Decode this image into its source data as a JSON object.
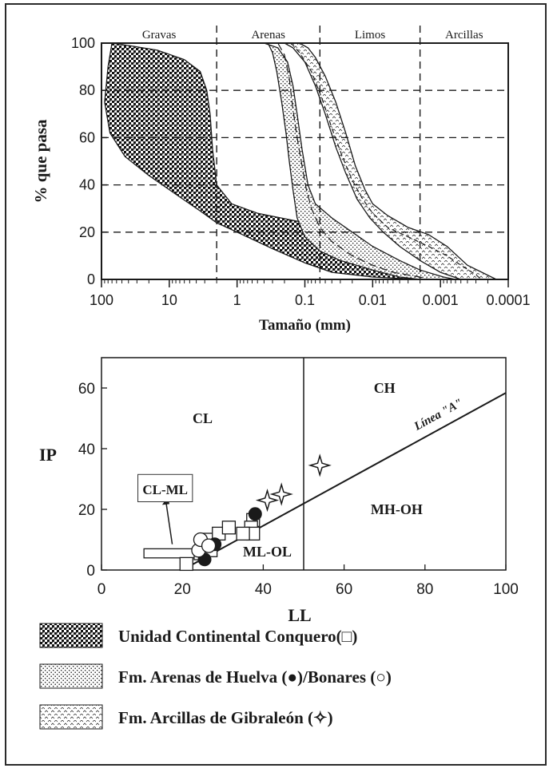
{
  "chart_data": [
    {
      "type": "area",
      "xlabel": "Tamaño (mm)",
      "ylabel": "% que pasa",
      "xscale": "log-reversed",
      "xlim": [
        100,
        0.0001
      ],
      "ylim": [
        0,
        100
      ],
      "x_ticks": [
        "100",
        "10",
        "1",
        "0.1",
        "0.01",
        "0.001",
        "0.0001"
      ],
      "y_ticks": [
        "0",
        "20",
        "40",
        "60",
        "80",
        "100"
      ],
      "y_tick_values": [
        0,
        20,
        40,
        60,
        80,
        100
      ],
      "x_tick_values": [
        100,
        10,
        1,
        0.1,
        0.01,
        0.001,
        0.0001
      ],
      "grid": "dashed horizontal at 20,40,60,80; dashed vertical at class boundaries",
      "size_classes": [
        {
          "name": "Gravas",
          "from": 100,
          "to": 2
        },
        {
          "name": "Arenas",
          "from": 2,
          "to": 0.06
        },
        {
          "name": "Limos",
          "from": 0.06,
          "to": 0.002
        },
        {
          "name": "Arcillas",
          "from": 0.002,
          "to": 0.0001
        }
      ],
      "bands": [
        {
          "name": "Unidad Continental Conquero",
          "upper": [
            [
              70,
              100
            ],
            [
              40,
              99
            ],
            [
              15,
              97
            ],
            [
              6,
              93
            ],
            [
              3.5,
              88
            ],
            [
              2.8,
              80
            ],
            [
              2.5,
              70
            ],
            [
              2.3,
              55
            ],
            [
              2,
              40
            ],
            [
              1.2,
              32
            ],
            [
              0.5,
              28
            ],
            [
              0.1,
              24
            ],
            [
              0.03,
              18
            ],
            [
              0.01,
              12
            ],
            [
              0.004,
              6
            ],
            [
              0.0015,
              2
            ],
            [
              0.0009,
              0
            ]
          ],
          "lower": [
            [
              70,
              100
            ],
            [
              80,
              90
            ],
            [
              90,
              75
            ],
            [
              75,
              62
            ],
            [
              45,
              52
            ],
            [
              20,
              44
            ],
            [
              8,
              36
            ],
            [
              3.5,
              29
            ],
            [
              2,
              24
            ],
            [
              1,
              20
            ],
            [
              0.3,
              13
            ],
            [
              0.1,
              7
            ],
            [
              0.04,
              3
            ],
            [
              0.01,
              1
            ],
            [
              0.002,
              0
            ]
          ]
        },
        {
          "name": "Fm. Arenas de Huelva / Bonares",
          "upper": [
            [
              0.4,
              100
            ],
            [
              0.25,
              98
            ],
            [
              0.18,
              92
            ],
            [
              0.15,
              82
            ],
            [
              0.13,
              70
            ],
            [
              0.11,
              55
            ],
            [
              0.09,
              40
            ],
            [
              0.07,
              32
            ],
            [
              0.04,
              26
            ],
            [
              0.02,
              20
            ],
            [
              0.01,
              14
            ],
            [
              0.004,
              8
            ],
            [
              0.002,
              4
            ],
            [
              0.0009,
              1
            ],
            [
              0.0006,
              0
            ]
          ],
          "lower": [
            [
              0.35,
              100
            ],
            [
              0.3,
              96
            ],
            [
              0.26,
              88
            ],
            [
              0.22,
              75
            ],
            [
              0.19,
              62
            ],
            [
              0.17,
              50
            ],
            [
              0.15,
              38
            ],
            [
              0.13,
              26
            ],
            [
              0.1,
              18
            ],
            [
              0.06,
              12
            ],
            [
              0.03,
              8
            ],
            [
              0.01,
              4
            ],
            [
              0.004,
              1
            ],
            [
              0.002,
              0
            ]
          ]
        },
        {
          "name": "Fm. Arcillas de Gibraleón",
          "upper": [
            [
              0.12,
              100
            ],
            [
              0.09,
              98
            ],
            [
              0.07,
              94
            ],
            [
              0.05,
              86
            ],
            [
              0.035,
              75
            ],
            [
              0.025,
              62
            ],
            [
              0.018,
              48
            ],
            [
              0.013,
              38
            ],
            [
              0.01,
              32
            ],
            [
              0.006,
              27
            ],
            [
              0.003,
              22
            ],
            [
              0.0015,
              19
            ],
            [
              0.0008,
              14
            ],
            [
              0.0004,
              6
            ],
            [
              0.00015,
              0
            ]
          ],
          "lower": [
            [
              0.2,
              100
            ],
            [
              0.15,
              98
            ],
            [
              0.1,
              92
            ],
            [
              0.07,
              82
            ],
            [
              0.05,
              70
            ],
            [
              0.035,
              56
            ],
            [
              0.025,
              45
            ],
            [
              0.017,
              34
            ],
            [
              0.011,
              26
            ],
            [
              0.007,
              20
            ],
            [
              0.004,
              14
            ],
            [
              0.002,
              8
            ],
            [
              0.001,
              3
            ],
            [
              0.0005,
              0
            ]
          ],
          "center": [
            [
              0.16,
              100
            ],
            [
              0.12,
              96
            ],
            [
              0.08,
              88
            ],
            [
              0.055,
              76
            ],
            [
              0.04,
              64
            ],
            [
              0.028,
              52
            ],
            [
              0.02,
              42
            ],
            [
              0.014,
              34
            ],
            [
              0.01,
              28
            ],
            [
              0.006,
              22
            ],
            [
              0.003,
              18
            ],
            [
              0.0015,
              14
            ],
            [
              0.0008,
              10
            ],
            [
              0.0005,
              6
            ],
            [
              0.0003,
              2
            ],
            [
              0.00025,
              0
            ]
          ]
        },
        {
          "name": "Arenas de Huelva dashed curve",
          "center": [
            [
              0.25,
              100
            ],
            [
              0.2,
              95
            ],
            [
              0.17,
              85
            ],
            [
              0.15,
              72
            ],
            [
              0.13,
              60
            ],
            [
              0.11,
              48
            ],
            [
              0.095,
              38
            ],
            [
              0.08,
              30
            ],
            [
              0.06,
              22
            ],
            [
              0.04,
              16
            ],
            [
              0.02,
              10
            ],
            [
              0.01,
              6
            ],
            [
              0.005,
              3
            ],
            [
              0.002,
              1
            ],
            [
              0.0015,
              0
            ]
          ]
        }
      ]
    },
    {
      "type": "scatter",
      "title": "",
      "xlabel": "LL",
      "ylabel": "IP",
      "xlim": [
        0,
        100
      ],
      "ylim": [
        0,
        70
      ],
      "x_ticks": [
        "0",
        "20",
        "40",
        "60",
        "80",
        "100"
      ],
      "x_tick_values": [
        0,
        20,
        40,
        60,
        80,
        100
      ],
      "y_ticks": [
        "0",
        "20",
        "40",
        "60"
      ],
      "y_tick_values": [
        0,
        20,
        40,
        60
      ],
      "zones": [
        {
          "label": "CL",
          "x": 25,
          "y": 50
        },
        {
          "label": "CH",
          "x": 70,
          "y": 60
        },
        {
          "label": "MH-OH",
          "x": 73,
          "y": 20
        },
        {
          "label": "ML-OL",
          "x": 41,
          "y": 6
        }
      ],
      "callout_label": "CL-ML",
      "lines": {
        "vertical_LL": 50,
        "linea_a_label": "Línea \"A\"",
        "linea_a_from": [
          20,
          0
        ],
        "linea_a_to": [
          100,
          58.4
        ]
      },
      "series": [
        {
          "name": "Unidad Continental Conquero",
          "marker": "square",
          "x": [
            21,
            24.5,
            26,
            27,
            29,
            31.5,
            37.5,
            37,
            37.5,
            35
          ],
          "y": [
            2,
            5.5,
            10,
            6.5,
            12,
            14,
            16.5,
            14,
            12,
            12
          ]
        },
        {
          "name": "Fm. Arenas de Huelva",
          "marker": "filled-circle",
          "x": [
            25.5,
            28,
            38
          ],
          "y": [
            3.5,
            8.5,
            18.5
          ]
        },
        {
          "name": "Bonares",
          "marker": "open-circle",
          "x": [
            24,
            24.5,
            26.5
          ],
          "y": [
            6.5,
            10,
            8
          ]
        },
        {
          "name": "Fm. Arcillas de Gibraleón",
          "marker": "star",
          "x": [
            41,
            44.5,
            54
          ],
          "y": [
            23,
            25,
            34.5
          ]
        }
      ],
      "cl_ml_box": {
        "x": [
          10.5,
          25
        ],
        "y": [
          4,
          7
        ]
      }
    }
  ],
  "top_chart_labels": {
    "xlabel": "Tamaño (mm)",
    "ylabel": "% que pasa",
    "class_gravas": "Gravas",
    "class_arenas": "Arenas",
    "class_limos": "Limos",
    "class_arcillas": "Arcillas"
  },
  "bottom_chart_labels": {
    "xlabel": "LL",
    "ylabel": "IP",
    "cl": "CL",
    "ch": "CH",
    "mh_oh": "MH-OH",
    "ml_ol": "ML-OL",
    "cl_ml": "CL-ML",
    "linea_a": "Línea \"A\""
  },
  "legend": {
    "item1": "Unidad Continental Conquero(□)",
    "item2": "Fm. Arenas de Huelva (●)/Bonares (○)",
    "item3": "Fm. Arcillas de Gibraleón (✧)"
  },
  "colors": {
    "ink": "#1a1a1a",
    "frame": "#2a2a2a",
    "background": "#ffffff"
  }
}
